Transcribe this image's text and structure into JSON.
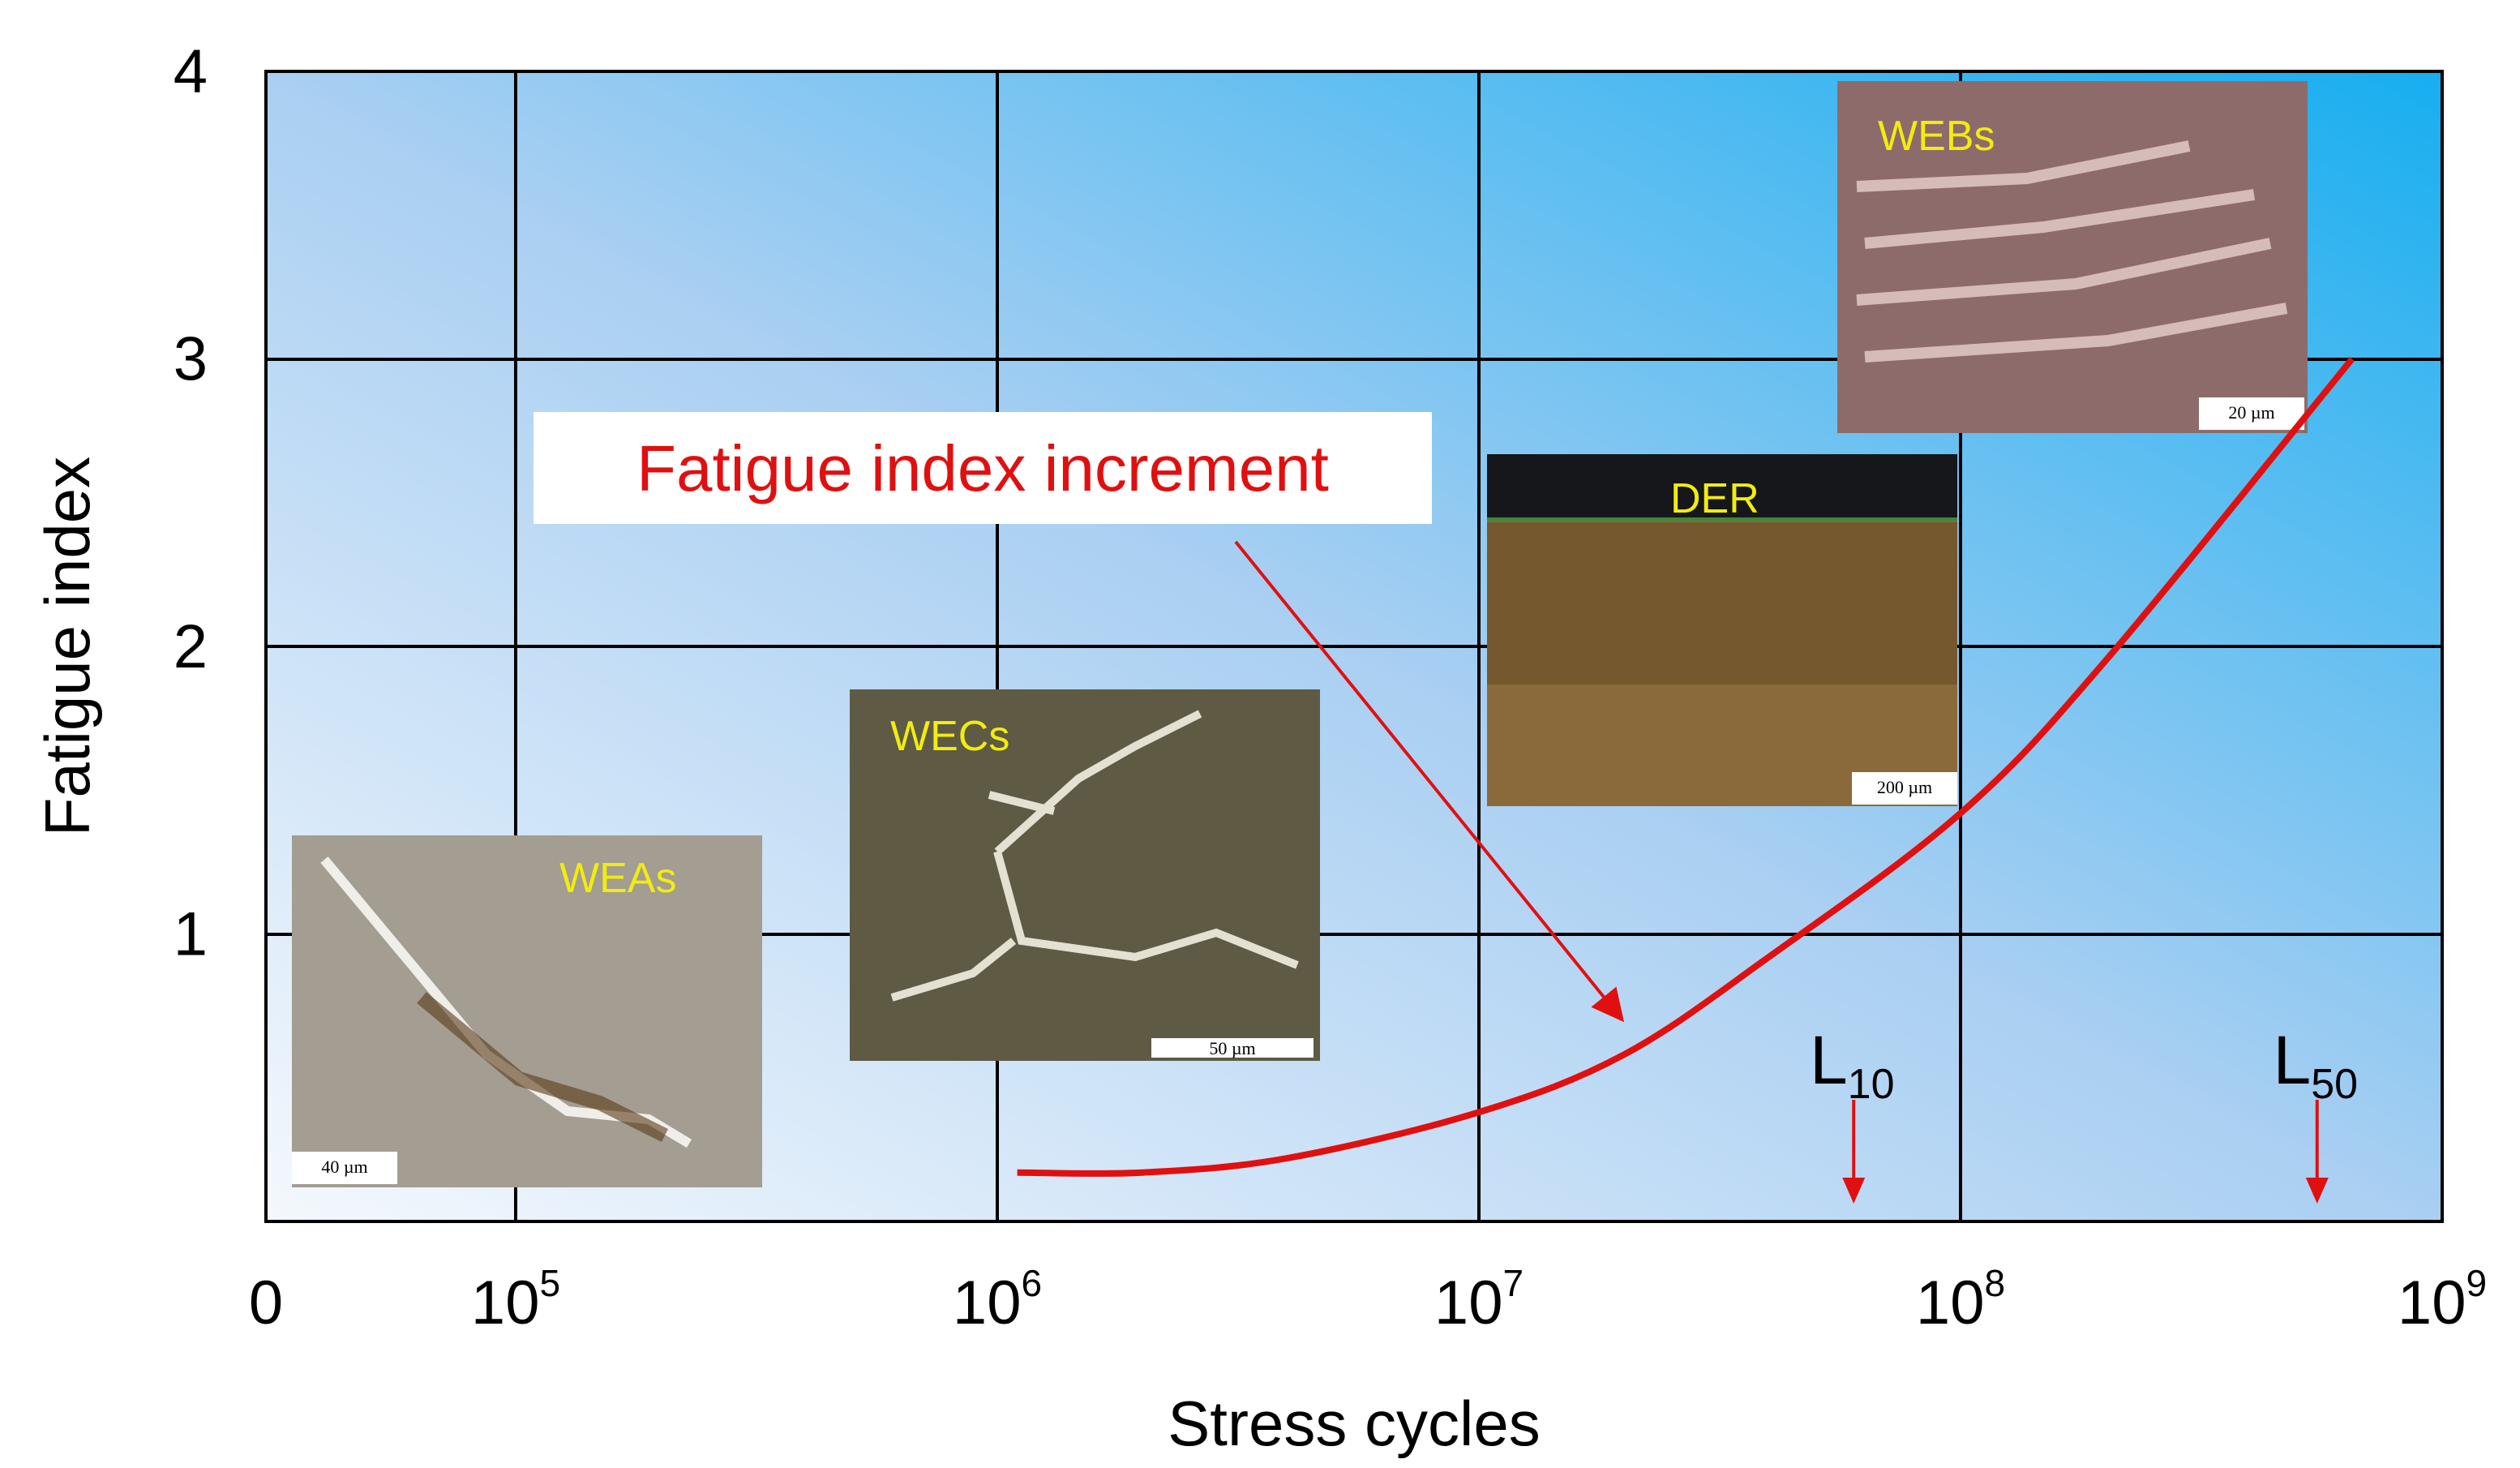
{
  "chart_data": {
    "type": "line",
    "xlabel": "Stress cycles",
    "ylabel": "Fatigue index",
    "x_ticks": [
      {
        "base": "0",
        "exp": ""
      },
      {
        "base": "10",
        "exp": "5"
      },
      {
        "base": "10",
        "exp": "6"
      },
      {
        "base": "10",
        "exp": "7"
      },
      {
        "base": "10",
        "exp": "8"
      },
      {
        "base": "10",
        "exp": "9"
      }
    ],
    "y_ticks": [
      "1",
      "2",
      "3",
      "4"
    ],
    "ylim": [
      0,
      4
    ],
    "x_scale": "log",
    "grid": true,
    "background": "blue gradient",
    "series": [
      {
        "color": "#e01010",
        "x": [
          1100000.0,
          2000000.0,
          4000000.0,
          10000000.0,
          20000000.0,
          40000000.0,
          100000000.0,
          200000000.0,
          650000000.0
        ],
        "y": [
          0.17,
          0.17,
          0.22,
          0.38,
          0.58,
          0.92,
          1.42,
          1.95,
          3.0
        ]
      }
    ],
    "annotation": {
      "text": "Fatigue index increment",
      "color": "#e01010"
    },
    "life_markers": [
      {
        "base": "L",
        "sub": "10",
        "x": 60000000.0
      },
      {
        "base": "L",
        "sub": "50",
        "x": 550000000.0
      }
    ],
    "micrographs": [
      {
        "label": "WEAs",
        "scale_bar": "40 µm",
        "tone": "#a39d92"
      },
      {
        "label": "WECs",
        "scale_bar": "50 µm",
        "tone": "#5e5a44"
      },
      {
        "label": "DER",
        "scale_bar": "200 µm",
        "tone": "#8a6a3a"
      },
      {
        "label": "WEBs",
        "scale_bar": "20 µm",
        "tone": "#8e6b6b"
      }
    ]
  }
}
